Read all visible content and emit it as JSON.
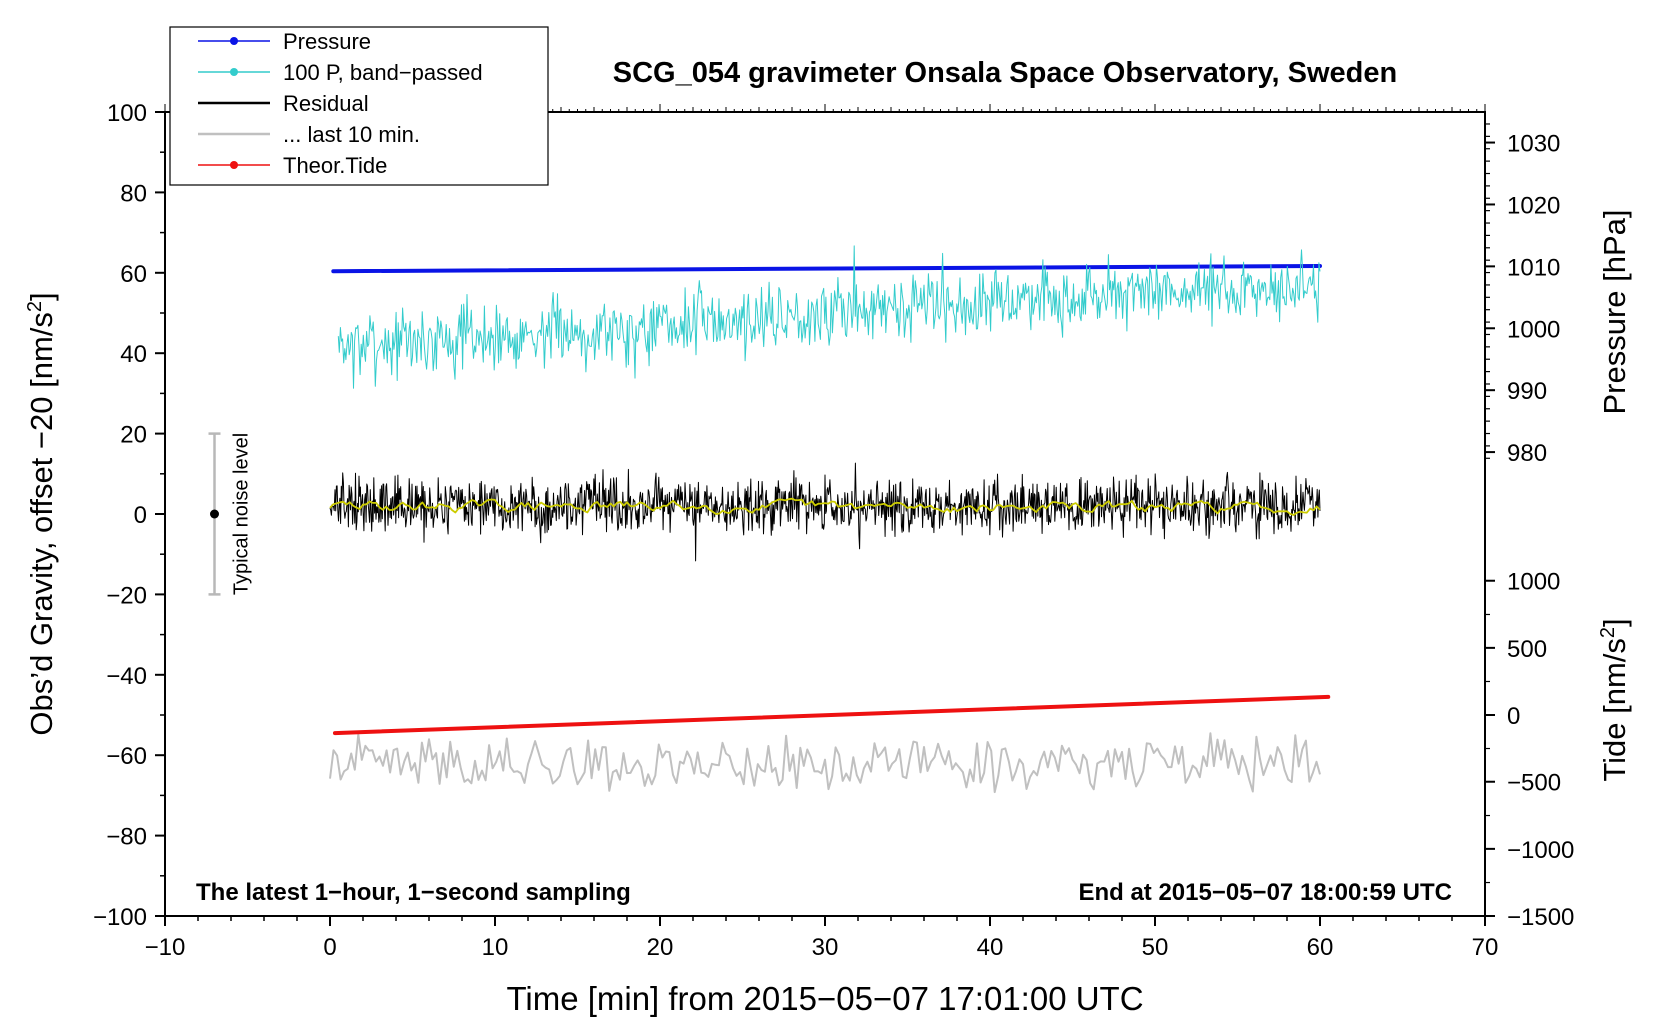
{
  "chart_data": {
    "type": "line",
    "title": "SCG_054 gravimeter Onsala Space Observatory, Sweden",
    "xlabel": "Time [min] from 2015−05−07 17:01:00 UTC",
    "ylabel": "Obs’d Gravity, offset −20 [nm/s",
    "ylabel_sup": "2",
    "ylabel_end": "]",
    "pressure_axis_label": "Pressure [hPa]",
    "tide_axis_label": "Tide [nm/s",
    "tide_axis_sup": "2",
    "tide_axis_end": "]",
    "xlim": [
      -10,
      70
    ],
    "ylim": [
      -100,
      100
    ],
    "xticks": [
      {
        "v": -10,
        "label": "−10"
      },
      {
        "v": 0,
        "label": "0"
      },
      {
        "v": 10,
        "label": "10"
      },
      {
        "v": 20,
        "label": "20"
      },
      {
        "v": 30,
        "label": "30"
      },
      {
        "v": 40,
        "label": "40"
      },
      {
        "v": 50,
        "label": "50"
      },
      {
        "v": 60,
        "label": "60"
      },
      {
        "v": 70,
        "label": "70"
      }
    ],
    "yticks": [
      {
        "v": 100,
        "label": "100"
      },
      {
        "v": 80,
        "label": "80"
      },
      {
        "v": 60,
        "label": "60"
      },
      {
        "v": 40,
        "label": "40"
      },
      {
        "v": 20,
        "label": "20"
      },
      {
        "v": 0,
        "label": "0"
      },
      {
        "v": -20,
        "label": "−20"
      },
      {
        "v": -40,
        "label": "−40"
      },
      {
        "v": -60,
        "label": "−60"
      },
      {
        "v": -80,
        "label": "−80"
      },
      {
        "v": -100,
        "label": "−100"
      }
    ],
    "pressure_ticks": [
      {
        "v": 1030,
        "g": 92.4,
        "label": "1030"
      },
      {
        "v": 1020,
        "g": 77.0,
        "label": "1020"
      },
      {
        "v": 1010,
        "g": 61.6,
        "label": "1010"
      },
      {
        "v": 1000,
        "g": 46.2,
        "label": "1000"
      },
      {
        "v": 990,
        "g": 30.8,
        "label": "990"
      },
      {
        "v": 980,
        "g": 15.4,
        "label": "980"
      }
    ],
    "tide_ticks": [
      {
        "v": 1000,
        "g": -16.6,
        "label": "1000"
      },
      {
        "v": 500,
        "g": -33.3,
        "label": "500"
      },
      {
        "v": 0,
        "g": -50.0,
        "label": "0"
      },
      {
        "v": -500,
        "g": -66.6,
        "label": "−500"
      },
      {
        "v": -1000,
        "g": -83.3,
        "label": "−1000"
      },
      {
        "v": -1500,
        "g": -100.0,
        "label": "−1500"
      }
    ],
    "legend": [
      {
        "name": "Pressure",
        "color": "#0a14e6",
        "marker": true
      },
      {
        "name": "100 P, band−passed",
        "color": "#33cccc",
        "marker": true
      },
      {
        "name": "Residual",
        "color": "#000000",
        "marker": false
      },
      {
        "name": "... last 10 min.",
        "color": "#c0c0c0",
        "marker": false
      },
      {
        "name": "Theor.Tide",
        "color": "#ee1111",
        "marker": true
      }
    ],
    "series": [
      {
        "name": "Pressure",
        "color": "#0a14e6",
        "x": [
          0.2,
          60
        ],
        "y": [
          60.4,
          61.7
        ],
        "kind": "line"
      },
      {
        "name": "100 P, band−passed",
        "color": "#33cccc",
        "kind": "noise",
        "x_range": [
          0.5,
          60
        ],
        "center": [
          [
            0,
            42
          ],
          [
            10,
            44
          ],
          [
            20,
            47
          ],
          [
            30,
            50
          ],
          [
            40,
            53
          ],
          [
            50,
            55
          ],
          [
            60,
            57
          ]
        ],
        "amp": 6.5,
        "seed": 7
      },
      {
        "name": "Residual",
        "color": "#000000",
        "kind": "noise",
        "x_range": [
          0,
          60
        ],
        "center": [
          [
            0,
            2
          ],
          [
            60,
            2
          ]
        ],
        "amp": 5.2,
        "seed": 13
      },
      {
        "name": "Residual smoothed",
        "color": "#cccc00",
        "kind": "smooth",
        "x_range": [
          0,
          60
        ],
        "center": [
          [
            0,
            2
          ],
          [
            60,
            1.6
          ]
        ],
        "amp": 1.2,
        "seed": 29
      },
      {
        "name": "... last 10 min.",
        "color": "#c0c0c0",
        "kind": "wiggle",
        "x_range": [
          0,
          60
        ],
        "center": [
          [
            0,
            -62
          ],
          [
            60,
            -62
          ]
        ],
        "amp": 5.5,
        "seed": 41
      },
      {
        "name": "Theor.Tide",
        "color": "#ee1111",
        "x": [
          0.3,
          60.5
        ],
        "y": [
          -54.5,
          -45.5
        ],
        "kind": "line"
      }
    ],
    "noise_bar": {
      "x": -7,
      "y": 0,
      "low": -20,
      "high": 20,
      "label": "Typical noise level"
    },
    "annotations": {
      "bottom_left": "The latest 1−hour, 1−second sampling",
      "bottom_right": "End at 2015−05−07 18:00:59 UTC"
    },
    "grid": false
  }
}
